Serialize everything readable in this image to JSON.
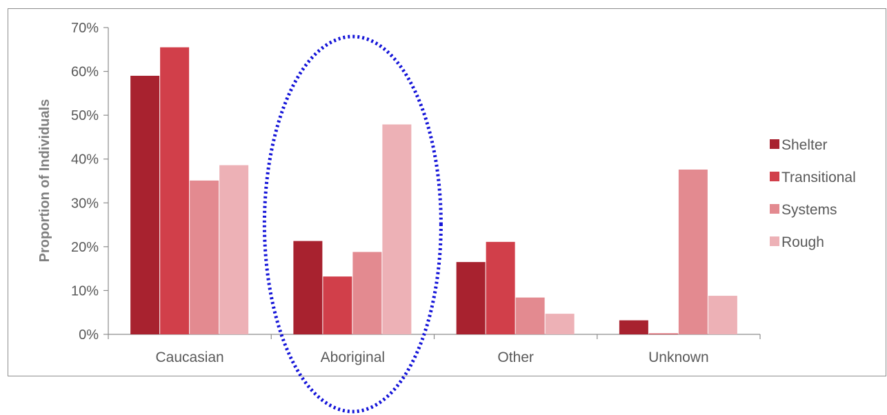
{
  "chart_data": {
    "type": "bar",
    "title": "",
    "xlabel": "",
    "ylabel": "Proportion of Individuals",
    "ylim": [
      0,
      70
    ],
    "yticks": [
      "0%",
      "10%",
      "20%",
      "30%",
      "40%",
      "50%",
      "60%",
      "70%"
    ],
    "categories": [
      "Caucasian",
      "Aboriginal",
      "Other",
      "Unknown"
    ],
    "series": [
      {
        "name": "Shelter",
        "color": "#a8222f",
        "values": [
          59,
          21.3,
          16.5,
          3.2
        ]
      },
      {
        "name": "Transitional",
        "color": "#d13f4a",
        "values": [
          65.5,
          13.2,
          21.1,
          0.2
        ]
      },
      {
        "name": "Systems",
        "color": "#e38a90",
        "values": [
          35.1,
          18.8,
          8.4,
          37.6
        ]
      },
      {
        "name": "Rough",
        "color": "#edb1b6",
        "values": [
          38.6,
          47.9,
          4.7,
          8.8
        ]
      }
    ],
    "legend": "right",
    "grid": false,
    "highlight": {
      "category": "Aboriginal",
      "shape": "dotted ellipse",
      "color": "#1414d8"
    }
  }
}
